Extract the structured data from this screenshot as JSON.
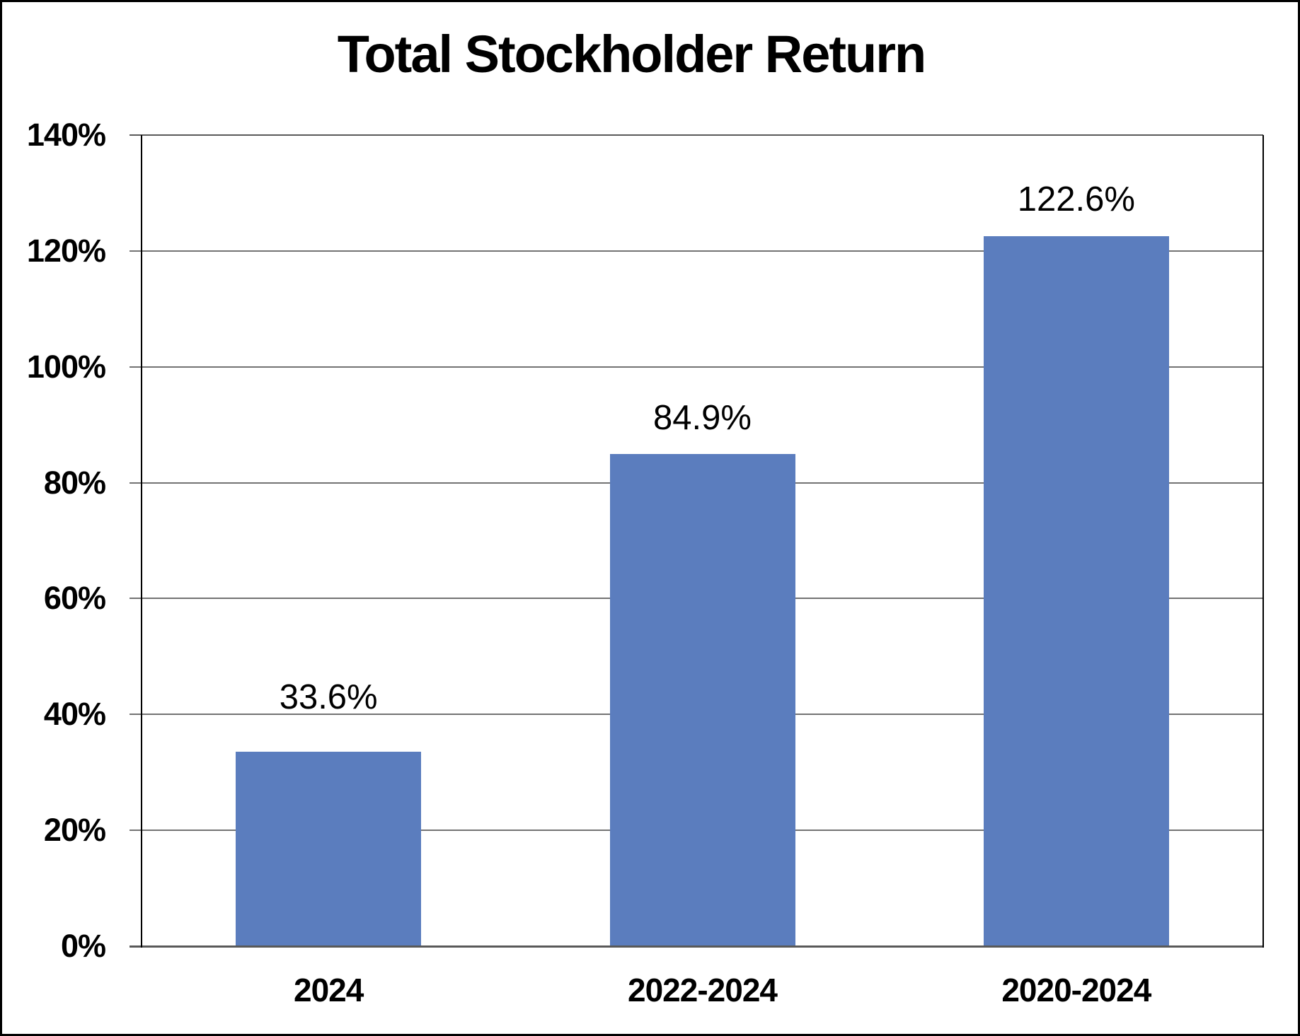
{
  "chart_data": {
    "type": "bar",
    "title": "Total Stockholder Return",
    "categories": [
      "2024",
      "2022-2024",
      "2020-2024"
    ],
    "values": [
      33.6,
      84.9,
      122.6
    ],
    "data_labels": [
      "33.6%",
      "84.9%",
      "122.6%"
    ],
    "series": [
      {
        "name": "Total Stockholder Return",
        "values": [
          33.6,
          84.9,
          122.6
        ]
      }
    ],
    "y_ticks": [
      0,
      20,
      40,
      60,
      80,
      100,
      120,
      140
    ],
    "y_tick_labels": [
      "0%",
      "20%",
      "40%",
      "60%",
      "80%",
      "100%",
      "120%",
      "140%"
    ],
    "ylim": [
      0,
      140
    ],
    "xlabel": "",
    "ylabel": "",
    "grid": true,
    "legend": false,
    "colors": {
      "bar_fill": "#5B7DBE",
      "gridline": "#737373",
      "baseline": "#595959",
      "axis_line": "#000000",
      "text": "#000000",
      "background": "#ffffff",
      "outer_border": "#000000"
    }
  }
}
